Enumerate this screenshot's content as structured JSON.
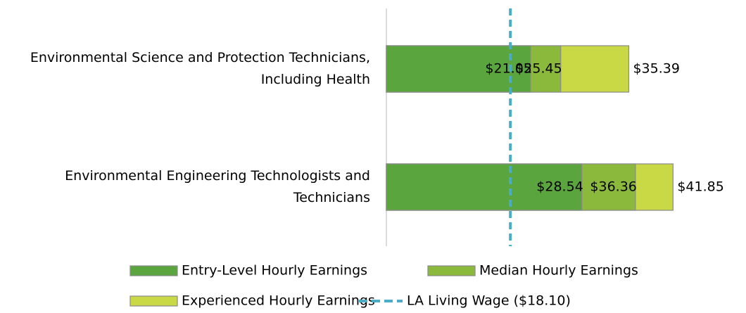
{
  "chart_data": {
    "type": "bar",
    "orientation": "horizontal",
    "bar_mode": "overlap",
    "categories": [
      "Environmental Science and Protection Technicians, Including Health",
      "Environmental Engineering Technologists and Technicians"
    ],
    "series": [
      {
        "name": "Experienced Hourly Earnings",
        "color": "#c9d845",
        "values": [
          35.39,
          41.85
        ],
        "value_labels": [
          "$35.39",
          "$41.85"
        ]
      },
      {
        "name": "Median Hourly Earnings",
        "color": "#8bb93b",
        "values": [
          25.45,
          36.36
        ],
        "value_labels": [
          "$25.45",
          "$36.36"
        ]
      },
      {
        "name": "Entry-Level Hourly Earnings",
        "color": "#5aa53d",
        "values": [
          21.05,
          28.54
        ],
        "value_labels": [
          "$21.05",
          "$28.54"
        ]
      }
    ],
    "reference_lines": [
      {
        "name": "LA Living Wage ($18.10)",
        "value": 18.1,
        "color": "#4bacc6",
        "dash": true
      }
    ],
    "xlim": [
      0,
      45
    ]
  }
}
